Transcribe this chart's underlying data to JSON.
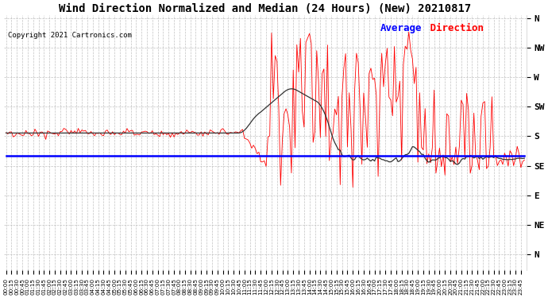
{
  "title": "Wind Direction Normalized and Median (24 Hours) (New) 20210817",
  "copyright_text": "Copyright 2021 Cartronics.com",
  "legend_blue_label": "Average",
  "legend_red_label": "Direction",
  "ytick_labels": [
    "N",
    "NW",
    "W",
    "SW",
    "S",
    "SE",
    "E",
    "NE",
    "N"
  ],
  "ytick_values": [
    0,
    45,
    90,
    135,
    180,
    225,
    270,
    315,
    360
  ],
  "ylim": [
    -5,
    385
  ],
  "background_color": "#ffffff",
  "grid_color": "#bbbbbb",
  "title_fontsize": 10,
  "axis_fontsize": 6,
  "red_flat_value": 175,
  "blue_avg_value": 210,
  "median_peak_value": 115,
  "median_flat_value": 210
}
